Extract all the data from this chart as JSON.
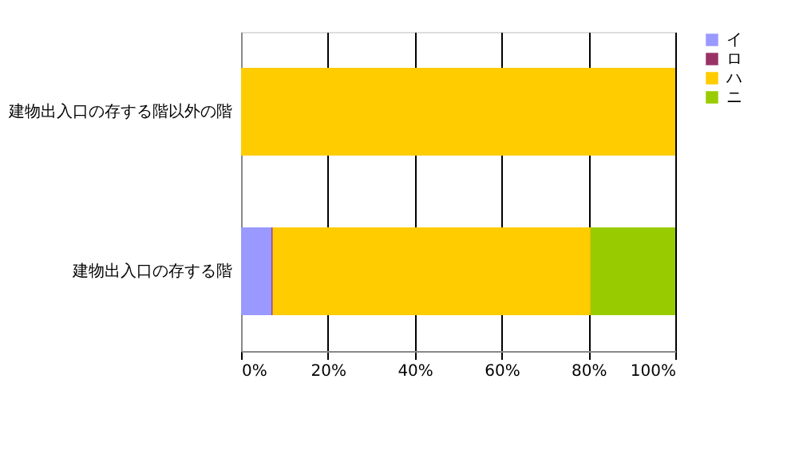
{
  "chart_data": {
    "type": "bar",
    "orientation": "horizontal",
    "stacked": true,
    "categories": [
      "建物出入口の存する階以外の階",
      "建物出入口の存する階"
    ],
    "series": [
      {
        "name": "イ",
        "color": "#9999ff",
        "values": [
          0,
          7.0
        ]
      },
      {
        "name": "ロ",
        "color": "#993366",
        "values": [
          0,
          0.3
        ]
      },
      {
        "name": "ハ",
        "color": "#ffcc00",
        "values": [
          100,
          73.2
        ]
      },
      {
        "name": "ニ",
        "color": "#99cc00",
        "values": [
          0,
          19.5
        ]
      }
    ],
    "xlim": [
      0,
      100
    ],
    "xticks": [
      {
        "value": 0,
        "label": "0%"
      },
      {
        "value": 20,
        "label": "20%"
      },
      {
        "value": 40,
        "label": "40%"
      },
      {
        "value": 60,
        "label": "60%"
      },
      {
        "value": 80,
        "label": "80%"
      },
      {
        "value": 100,
        "label": "100%"
      }
    ],
    "grid": "x",
    "legend": "right"
  }
}
